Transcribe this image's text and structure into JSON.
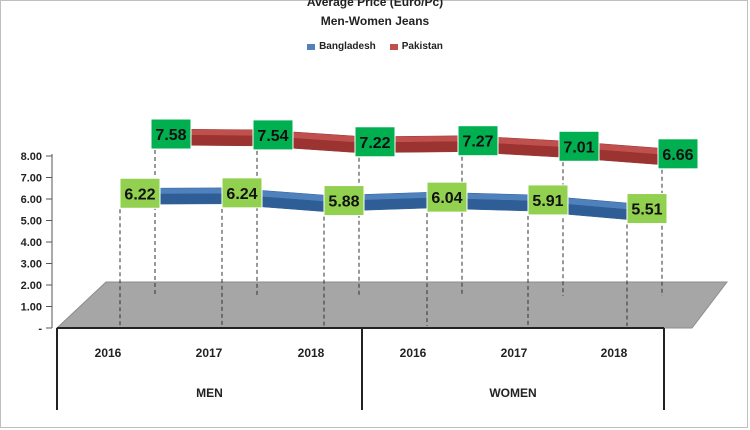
{
  "chart_data": {
    "type": "line",
    "title": "Average Price (Euro/Pc)",
    "subtitle": "Men-Women Jeans",
    "categories": [
      "2016",
      "2017",
      "2018",
      "2016",
      "2017",
      "2018"
    ],
    "groups": [
      {
        "label": "MEN",
        "categories": [
          "2016",
          "2017",
          "2018"
        ]
      },
      {
        "label": "WOMEN",
        "categories": [
          "2016",
          "2017",
          "2018"
        ]
      }
    ],
    "series": [
      {
        "name": "Bangladesh",
        "color": "#4f81bd",
        "label_color": "#92d050",
        "values": [
          6.22,
          6.24,
          5.88,
          6.04,
          5.91,
          5.51
        ],
        "labels": [
          "6.22",
          "6.24",
          "5.88",
          "6.04",
          "5.91",
          "5.51"
        ]
      },
      {
        "name": "Pakistan",
        "color": "#c0504d",
        "label_color": "#00b050",
        "values": [
          7.58,
          7.54,
          7.22,
          7.27,
          7.01,
          6.66
        ],
        "labels": [
          "7.58",
          "7.54",
          "7.22",
          "7.27",
          "7.01",
          "6.66"
        ]
      }
    ],
    "ylim": [
      0,
      8
    ],
    "yticks": [
      "8.00",
      "7.00",
      "6.00",
      "5.00",
      "4.00",
      "3.00",
      "2.00",
      "1.00",
      "-"
    ],
    "legend_position": "top-center",
    "grid": false,
    "style": "3d-line",
    "floor_color": "#a6a6a6"
  }
}
